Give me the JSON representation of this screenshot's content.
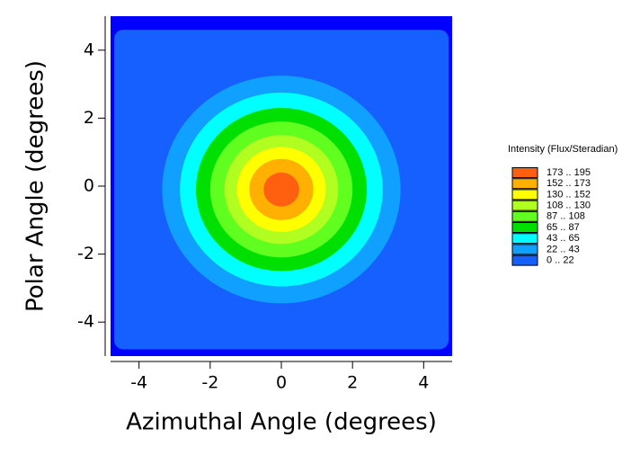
{
  "chart_data": {
    "type": "contour",
    "xlabel": "Azimuthal Angle (degrees)",
    "ylabel": "Polar Angle (degrees)",
    "legend_title": "Intensity (Flux/Steradian)",
    "xlim": [
      -4.8,
      4.8
    ],
    "ylim": [
      -5,
      5
    ],
    "xticks": [
      -4,
      -2,
      0,
      2,
      4
    ],
    "yticks": [
      -4,
      -2,
      0,
      2,
      4
    ],
    "plot_background": "#0000ff",
    "center": [
      0,
      -0.1
    ],
    "bands": [
      {
        "label": "0 .. 22",
        "low": 0,
        "high": 22,
        "color": "#1560ff",
        "radius": 4.7
      },
      {
        "label": "22 .. 43",
        "low": 22,
        "high": 43,
        "color": "#10a0ff",
        "radius": 3.35
      },
      {
        "label": "43 .. 65",
        "low": 43,
        "high": 65,
        "color": "#00ffff",
        "radius": 2.85
      },
      {
        "label": "65 .. 87",
        "low": 65,
        "high": 87,
        "color": "#00e000",
        "radius": 2.4
      },
      {
        "label": "87 .. 108",
        "low": 87,
        "high": 108,
        "color": "#60ff20",
        "radius": 2.0
      },
      {
        "label": "108 .. 130",
        "low": 108,
        "high": 130,
        "color": "#b0ff20",
        "radius": 1.6
      },
      {
        "label": "130 .. 152",
        "low": 130,
        "high": 152,
        "color": "#ffff00",
        "radius": 1.25
      },
      {
        "label": "152 .. 173",
        "low": 152,
        "high": 173,
        "color": "#ffb000",
        "radius": 0.9
      },
      {
        "label": "173 .. 195",
        "low": 173,
        "high": 195,
        "color": "#ff6010",
        "radius": 0.5
      }
    ]
  }
}
